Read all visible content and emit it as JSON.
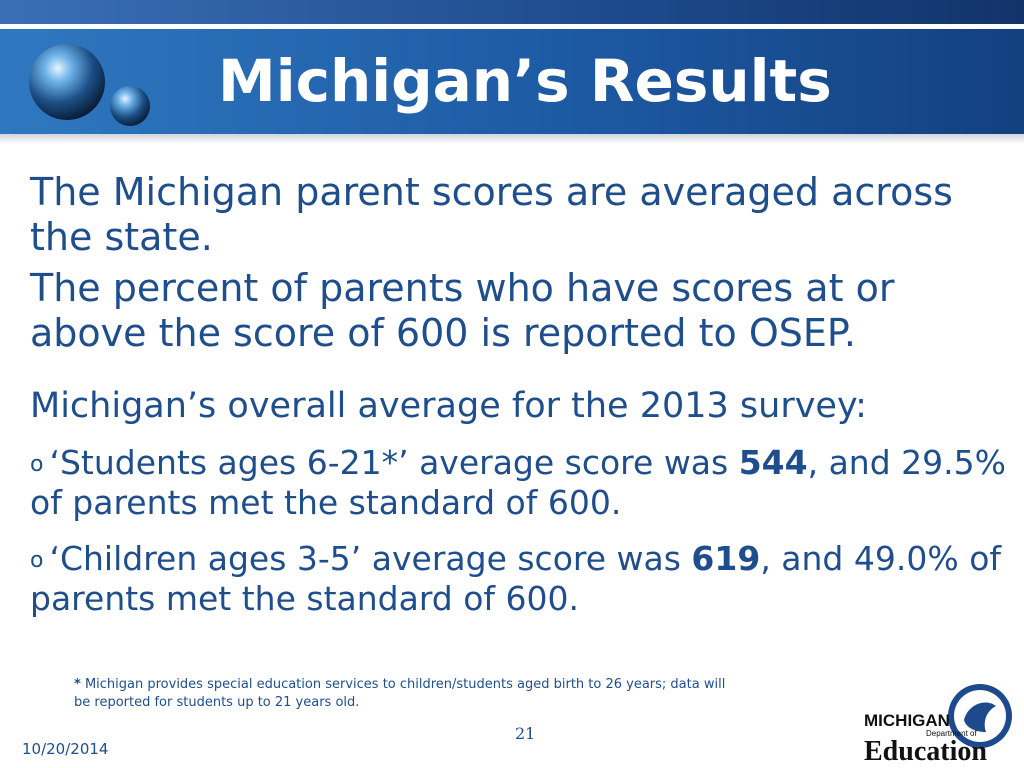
{
  "header": {
    "title": "Michigan’s Results"
  },
  "body": {
    "para1": "The Michigan parent scores are averaged across the state.",
    "para2": "The percent of parents who have scores at or above the score of 600 is reported to OSEP.",
    "para3": "Michigan’s overall average for the 2013 survey:",
    "bullet1": {
      "mark": "o",
      "pre": "‘Students ages 6-21*’ average score was ",
      "bold": "544",
      "post": ", and 29.5% of parents met the standard of 600."
    },
    "bullet2": {
      "mark": "o",
      "pre": "‘Children ages 3-5’ average score was ",
      "bold": "619",
      "post": ", and 49.0% of parents met the standard of 600."
    }
  },
  "footnote": {
    "star": "*",
    "text": " Michigan provides special education services to children/students aged birth to 26 years; data will be reported for students up to 21 years old."
  },
  "footer": {
    "page_number": "21",
    "date": "10/20/2014"
  },
  "logo": {
    "line1": "MICHIGAN",
    "line2": "Department of",
    "line3": "Education"
  },
  "colors": {
    "header_band": "#1d5aa4",
    "body_text": "#1f4e8c"
  }
}
